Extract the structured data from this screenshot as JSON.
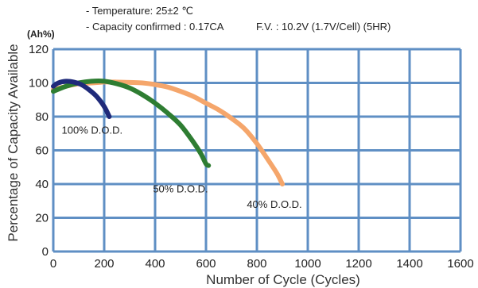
{
  "notes": {
    "line1": "- Temperature: 25±2 ℃",
    "line2a": "- Capacity confirmed : 0.17CA",
    "line2b": "F.V. : 10.2V (1.7V/Cell) (5HR)"
  },
  "chart_data": {
    "type": "line",
    "title": "",
    "xlabel": "Number of Cycle (Cycles)",
    "ylabel": "Percentage of Capacity Available",
    "y_unit": "(Ah%)",
    "xlim": [
      0,
      1600
    ],
    "ylim": [
      0,
      120
    ],
    "x_ticks": [
      "0",
      "200",
      "400",
      "600",
      "800",
      "1000",
      "1200",
      "1400",
      "1600"
    ],
    "y_ticks": [
      "0",
      "20",
      "40",
      "60",
      "80",
      "100",
      "120"
    ],
    "grid": true,
    "legend": "inline labels next to each curve",
    "series": [
      {
        "name": "40% D.O.D.",
        "color": "#f5a66b",
        "x": [
          0,
          50,
          100,
          150,
          200,
          250,
          300,
          350,
          400,
          450,
          500,
          550,
          600,
          650,
          700,
          750,
          800,
          850,
          880,
          900
        ],
        "y": [
          96,
          98,
          99.5,
          100,
          100.5,
          100.5,
          100.3,
          100,
          99,
          97.5,
          95,
          92,
          88,
          84,
          79,
          73,
          64,
          53,
          46,
          40
        ]
      },
      {
        "name": "50% D.O.D.",
        "color": "#2e7d32",
        "x": [
          0,
          50,
          100,
          150,
          200,
          250,
          300,
          350,
          400,
          450,
          500,
          550,
          580,
          600,
          610
        ],
        "y": [
          95,
          98,
          100,
          101,
          101,
          99.5,
          97,
          93,
          88,
          82,
          75,
          65,
          58,
          52,
          51
        ]
      },
      {
        "name": "100% D.O.D.",
        "color": "#1f2a7a",
        "x": [
          0,
          20,
          50,
          80,
          110,
          140,
          170,
          200,
          220
        ],
        "y": [
          98,
          100,
          101,
          100.5,
          99,
          96,
          92,
          86,
          80
        ]
      }
    ]
  }
}
